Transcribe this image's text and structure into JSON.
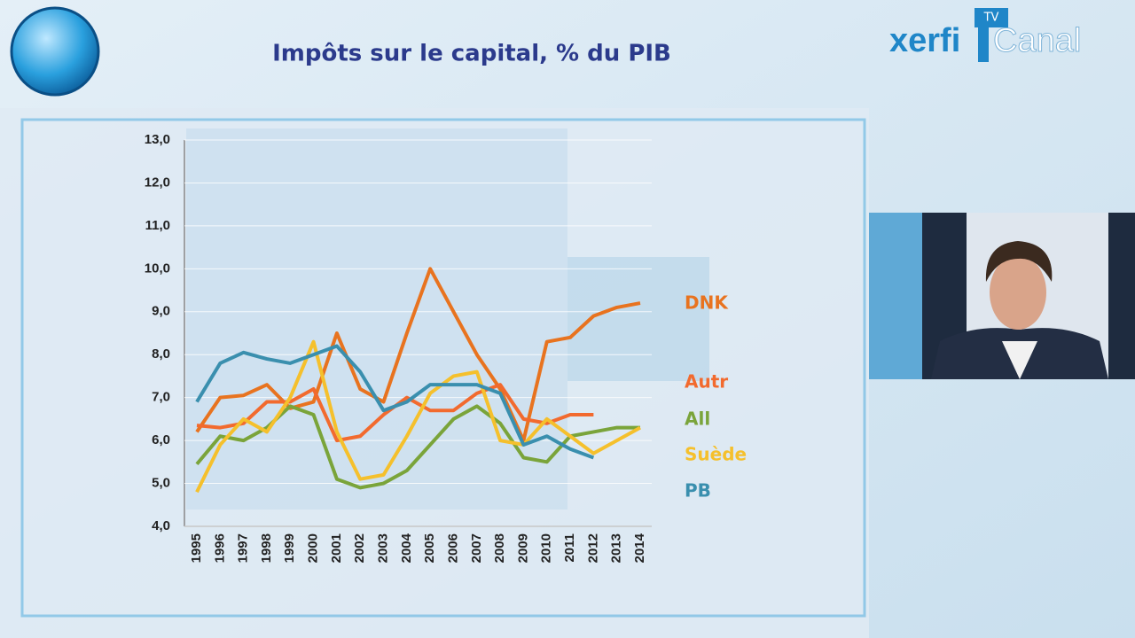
{
  "logo": {
    "brand": "xerfi",
    "channel": "Canal",
    "badge": "TV"
  },
  "chart_data": {
    "type": "line",
    "title": "Impôts sur le capital, % du PIB",
    "categories": [
      "1995",
      "1996",
      "1997",
      "1998",
      "1999",
      "2000",
      "2001",
      "2002",
      "2003",
      "2004",
      "2005",
      "2006",
      "2007",
      "2008",
      "2009",
      "2010",
      "2011",
      "2012",
      "2013",
      "2014"
    ],
    "series": [
      {
        "name": "DNK",
        "color": "#e8731f",
        "values": [
          6.2,
          7.0,
          7.05,
          7.3,
          6.75,
          6.9,
          8.5,
          7.2,
          6.9,
          8.5,
          10.0,
          9.0,
          8.0,
          7.2,
          6.0,
          8.3,
          8.4,
          8.9,
          9.1,
          9.2
        ]
      },
      {
        "name": "Autr",
        "color": "#f26a2e",
        "values": [
          6.35,
          6.3,
          6.4,
          6.9,
          6.9,
          7.2,
          6.0,
          6.1,
          6.6,
          7.0,
          6.7,
          6.7,
          7.1,
          7.3,
          6.5,
          6.4,
          6.6,
          6.6,
          null,
          null
        ]
      },
      {
        "name": "All",
        "color": "#7aa43a",
        "values": [
          5.45,
          6.1,
          6.0,
          6.3,
          6.8,
          6.6,
          5.1,
          4.9,
          5.0,
          5.3,
          5.9,
          6.5,
          6.8,
          6.4,
          5.6,
          5.5,
          6.1,
          6.2,
          6.3,
          6.3
        ]
      },
      {
        "name": "Suède",
        "color": "#f5c02c",
        "values": [
          4.8,
          5.9,
          6.5,
          6.2,
          7.0,
          8.3,
          6.2,
          5.1,
          5.2,
          6.1,
          7.1,
          7.5,
          7.6,
          6.0,
          5.9,
          6.5,
          6.1,
          5.7,
          6.0,
          6.3
        ]
      },
      {
        "name": "PB",
        "color": "#3a8fae",
        "values": [
          6.9,
          7.8,
          8.05,
          7.9,
          7.8,
          8.0,
          8.2,
          7.6,
          6.7,
          6.9,
          7.3,
          7.3,
          7.3,
          7.1,
          5.9,
          6.1,
          5.8,
          5.6,
          null,
          null
        ]
      }
    ],
    "ylim": [
      4,
      13
    ],
    "yticks": [
      {
        "value": 4,
        "label": "4,0"
      },
      {
        "value": 5,
        "label": "5,0"
      },
      {
        "value": 6,
        "label": "6,0"
      },
      {
        "value": 7,
        "label": "7,0"
      },
      {
        "value": 8,
        "label": "8,0"
      },
      {
        "value": 9,
        "label": "9,0"
      },
      {
        "value": 10,
        "label": "10,0"
      },
      {
        "value": 11,
        "label": "11,0"
      },
      {
        "value": 12,
        "label": "12,0"
      },
      {
        "value": 13,
        "label": "13,0"
      }
    ],
    "grid": true
  }
}
